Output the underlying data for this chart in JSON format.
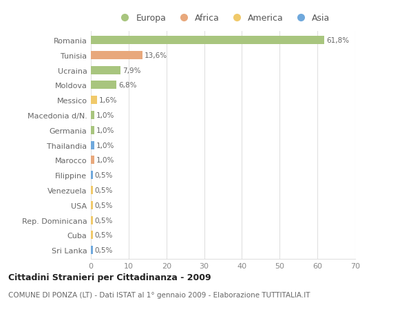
{
  "countries": [
    "Romania",
    "Tunisia",
    "Ucraina",
    "Moldova",
    "Messico",
    "Macedonia d/N.",
    "Germania",
    "Thailandia",
    "Marocco",
    "Filippine",
    "Venezuela",
    "USA",
    "Rep. Dominicana",
    "Cuba",
    "Sri Lanka"
  ],
  "values": [
    61.8,
    13.6,
    7.9,
    6.8,
    1.6,
    1.0,
    1.0,
    1.0,
    1.0,
    0.5,
    0.5,
    0.5,
    0.5,
    0.5,
    0.5
  ],
  "labels": [
    "61,8%",
    "13,6%",
    "7,9%",
    "6,8%",
    "1,6%",
    "1,0%",
    "1,0%",
    "1,0%",
    "1,0%",
    "0,5%",
    "0,5%",
    "0,5%",
    "0,5%",
    "0,5%",
    "0,5%"
  ],
  "colors": [
    "#a8c57e",
    "#e8a87c",
    "#a8c57e",
    "#a8c57e",
    "#f0c96a",
    "#a8c57e",
    "#a8c57e",
    "#6fa8dc",
    "#e8a87c",
    "#6fa8dc",
    "#f0c96a",
    "#f0c96a",
    "#f0c96a",
    "#f0c96a",
    "#6fa8dc"
  ],
  "legend_labels": [
    "Europa",
    "Africa",
    "America",
    "Asia"
  ],
  "legend_colors": [
    "#a8c57e",
    "#e8a87c",
    "#f0c96a",
    "#6fa8dc"
  ],
  "title": "Cittadini Stranieri per Cittadinanza - 2009",
  "subtitle": "COMUNE DI PONZA (LT) - Dati ISTAT al 1° gennaio 2009 - Elaborazione TUTTITALIA.IT",
  "xlim": [
    0,
    70
  ],
  "xticks": [
    0,
    10,
    20,
    30,
    40,
    50,
    60,
    70
  ],
  "background_color": "#ffffff",
  "grid_color": "#e0e0e0",
  "bar_height": 0.55
}
